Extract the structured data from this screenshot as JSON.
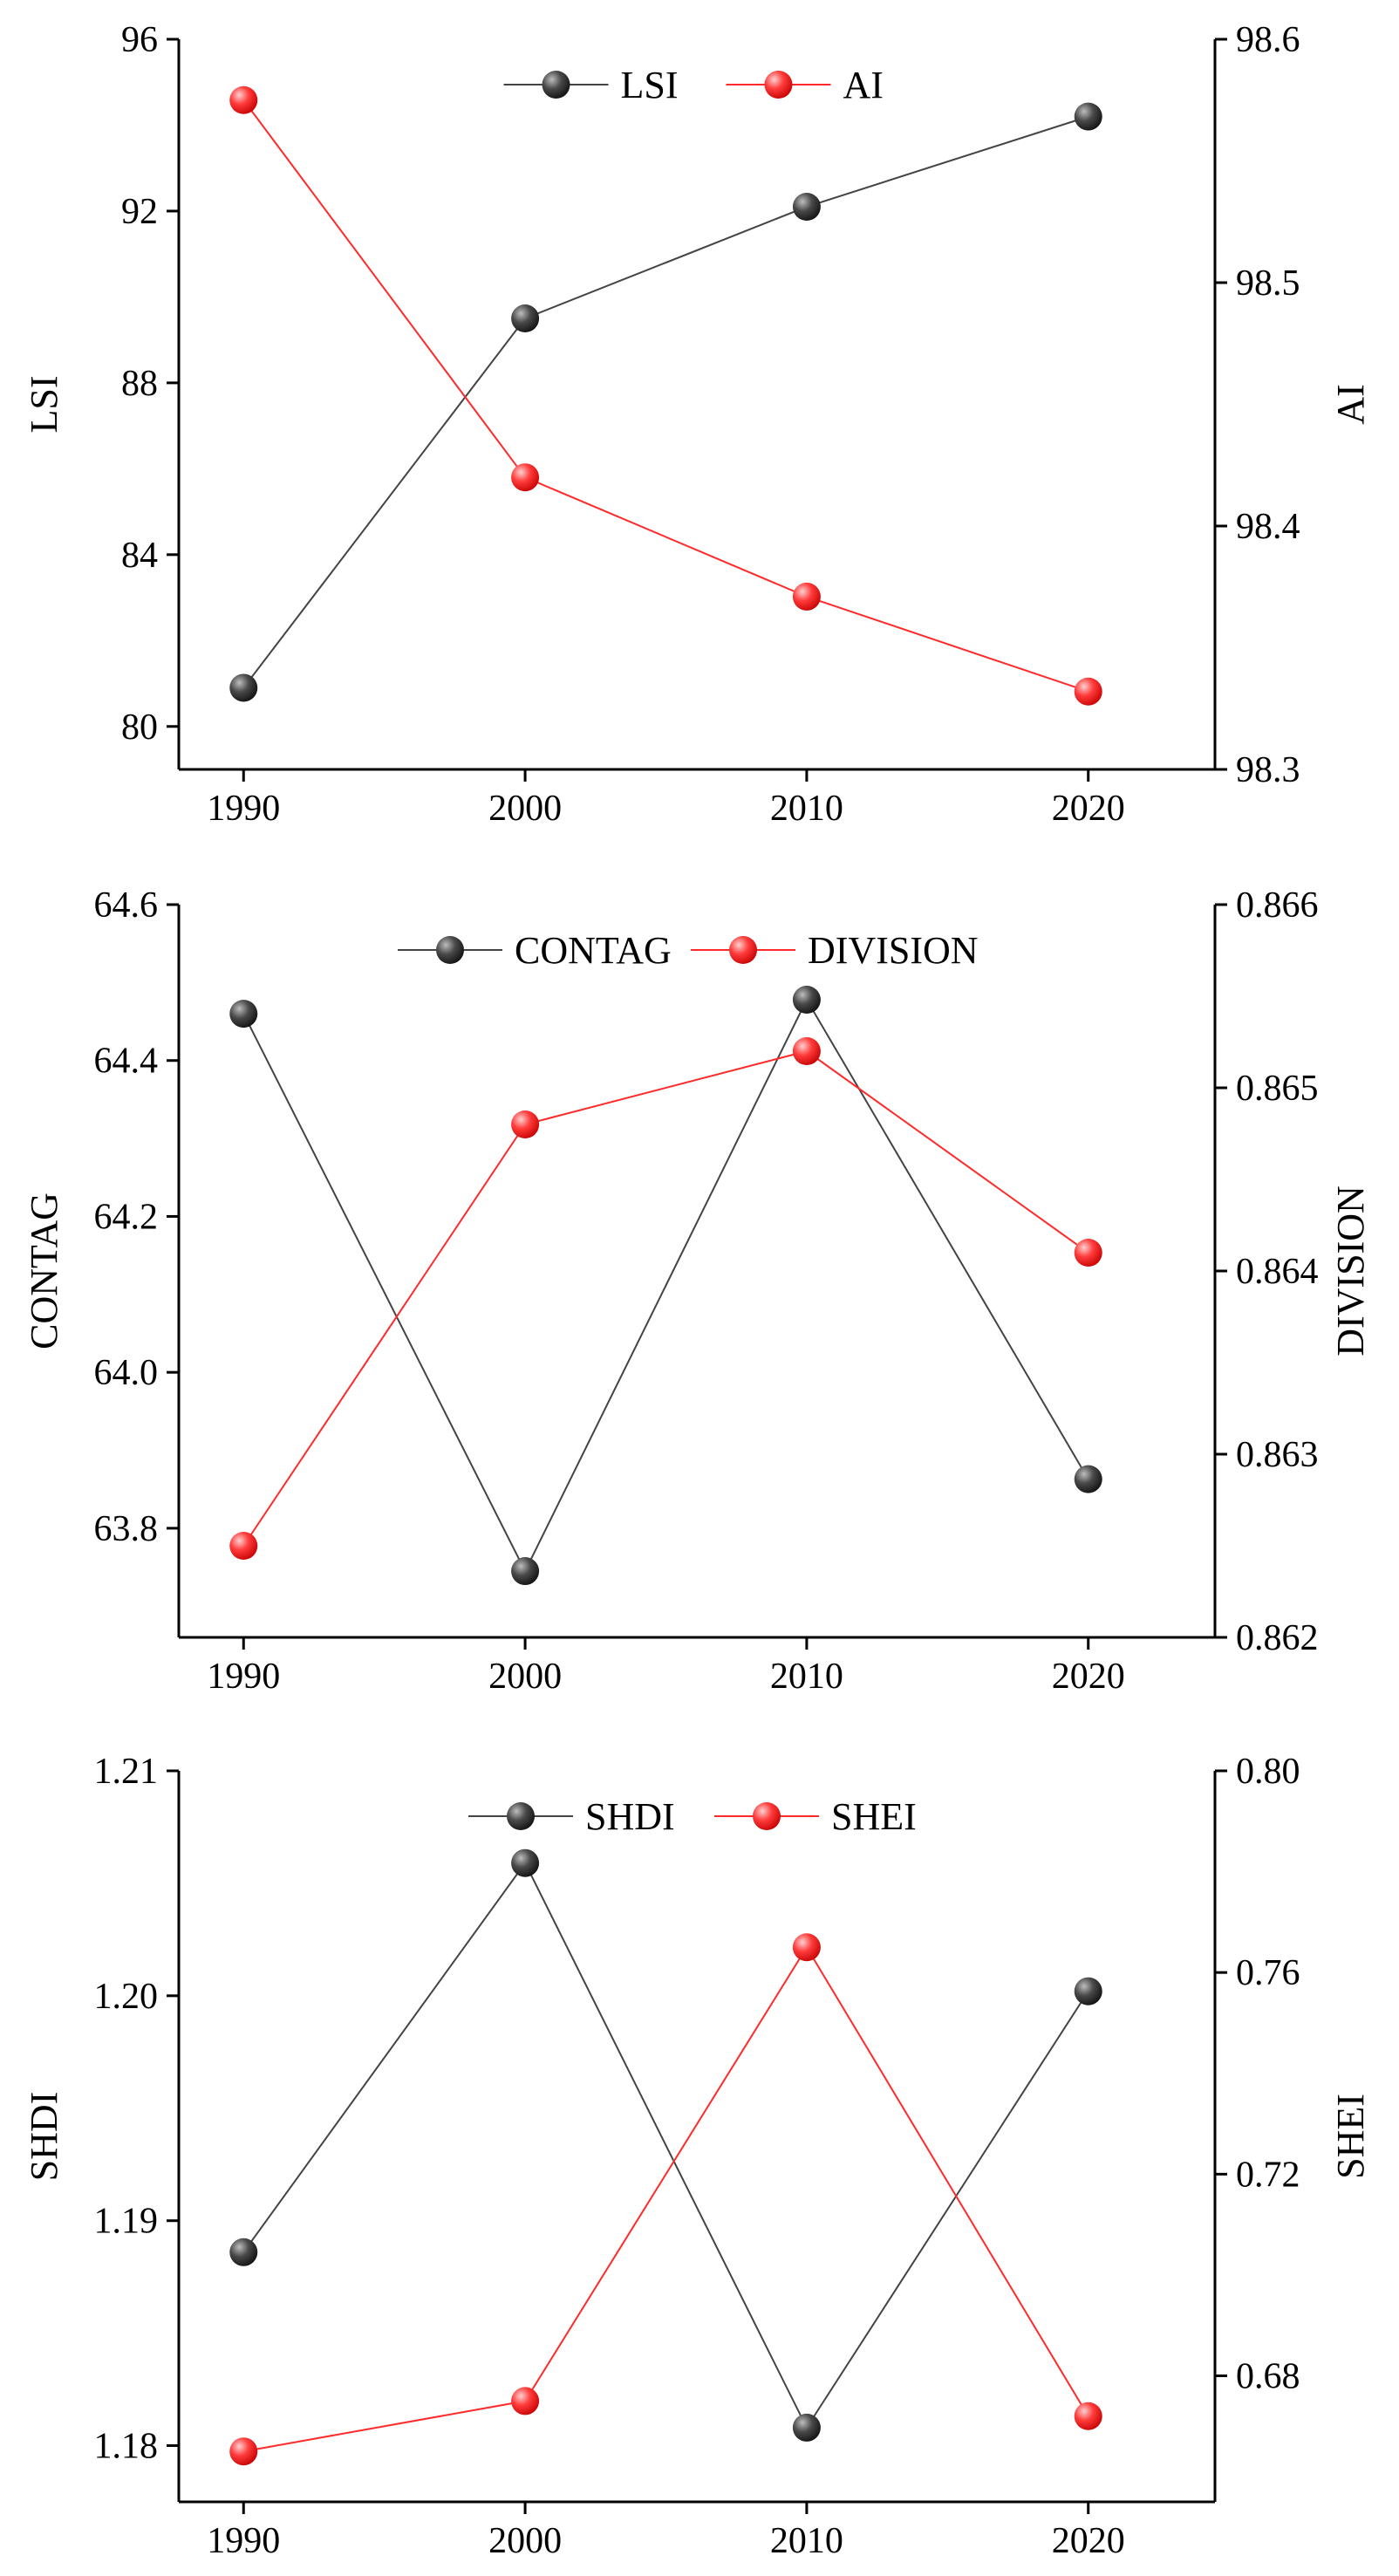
{
  "chart_data": [
    {
      "type": "line",
      "categories": [
        "1990",
        "2000",
        "2010",
        "2020"
      ],
      "xlim": [
        1987.7,
        2024.5
      ],
      "left_axis": {
        "label": "LSI",
        "ylim": [
          79,
          96
        ],
        "ticks": [
          "80",
          "84",
          "88",
          "92",
          "96"
        ],
        "tick_values": [
          80,
          84,
          88,
          92,
          96
        ]
      },
      "right_axis": {
        "label": "AI",
        "ylim": [
          98.3,
          98.6
        ],
        "ticks": [
          "98.3",
          "98.4",
          "98.5",
          "98.6"
        ],
        "tick_values": [
          98.3,
          98.4,
          98.5,
          98.6
        ]
      },
      "series": [
        {
          "name": "LSI",
          "axis": "left",
          "color": "#444444",
          "values": [
            80.9,
            89.5,
            92.1,
            94.2
          ]
        },
        {
          "name": "AI",
          "axis": "right",
          "color": "#ff2a2a",
          "values": [
            98.575,
            98.42,
            98.371,
            98.332
          ]
        }
      ],
      "legend_position": "top-center",
      "grid": false
    },
    {
      "type": "line",
      "categories": [
        "1990",
        "2000",
        "2010",
        "2020"
      ],
      "xlim": [
        1987.7,
        2024.5
      ],
      "left_axis": {
        "label": "CONTAG",
        "ylim": [
          63.66,
          64.6
        ],
        "ticks": [
          "63.8",
          "64.0",
          "64.2",
          "64.4",
          "64.6"
        ],
        "tick_values": [
          63.8,
          64.0,
          64.2,
          64.4,
          64.6
        ]
      },
      "right_axis": {
        "label": "DIVISION",
        "ylim": [
          0.862,
          0.866
        ],
        "ticks": [
          "0.862",
          "0.863",
          "0.864",
          "0.865",
          "0.866"
        ],
        "tick_values": [
          0.862,
          0.863,
          0.864,
          0.865,
          0.866
        ]
      },
      "series": [
        {
          "name": "CONTAG",
          "axis": "left",
          "color": "#444444",
          "values": [
            64.46,
            63.745,
            64.478,
            63.863
          ]
        },
        {
          "name": "DIVISION",
          "axis": "right",
          "color": "#ff2a2a",
          "values": [
            0.8625,
            0.8648,
            0.8652,
            0.8641
          ]
        }
      ],
      "legend_position": "top-center",
      "grid": false
    },
    {
      "type": "line",
      "categories": [
        "1990",
        "2000",
        "2010",
        "2020"
      ],
      "xlim": [
        1987.7,
        2024.5
      ],
      "left_axis": {
        "label": "SHDI",
        "ylim": [
          1.1775,
          1.21
        ],
        "ticks": [
          "1.18",
          "1.19",
          "1.20",
          "1.21"
        ],
        "tick_values": [
          1.18,
          1.19,
          1.2,
          1.21
        ]
      },
      "right_axis": {
        "label": "SHEI",
        "ylim": [
          0.655,
          0.8
        ],
        "ticks": [
          "0.68",
          "0.72",
          "0.76",
          "0.80"
        ],
        "tick_values": [
          0.68,
          0.72,
          0.76,
          0.8
        ]
      },
      "series": [
        {
          "name": "SHDI",
          "axis": "left",
          "color": "#444444",
          "values": [
            1.1886,
            1.2059,
            1.1808,
            1.2002
          ]
        },
        {
          "name": "SHEI",
          "axis": "right",
          "color": "#ff2a2a",
          "values": [
            0.665,
            0.675,
            0.765,
            0.672
          ]
        }
      ],
      "legend_position": "top-center",
      "grid": false
    }
  ]
}
